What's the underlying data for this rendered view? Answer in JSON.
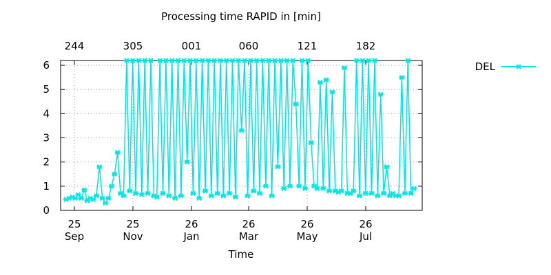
{
  "chart_data": {
    "type": "line",
    "title": "Processing time RAPID in [min]",
    "xlabel": "Time",
    "ylabel": "",
    "ylim": [
      0,
      6.2
    ],
    "y_ticks": [
      0,
      1,
      2,
      3,
      4,
      5,
      6
    ],
    "grid": true,
    "legend_position": "top-right",
    "bottom_ticks": [
      {
        "day": 25,
        "month": "Sep"
      },
      {
        "day": 25,
        "month": "Nov"
      },
      {
        "day": 26,
        "month": "Jan"
      },
      {
        "day": 26,
        "month": "Mar"
      },
      {
        "day": 26,
        "month": "May"
      },
      {
        "day": 26,
        "month": "Jul"
      }
    ],
    "top_ticks": [
      "244",
      "305",
      "001",
      "060",
      "121",
      "182"
    ],
    "series": [
      {
        "name": "DEL",
        "color": "#00e5e5",
        "x": [
          0,
          3,
          6,
          9,
          12,
          15,
          18,
          21,
          24,
          27,
          30,
          33,
          36,
          39,
          42,
          45,
          48,
          51,
          54,
          57,
          60,
          63,
          66,
          69,
          72,
          75,
          78,
          81,
          84,
          87,
          90,
          93,
          96,
          99,
          102,
          105,
          108,
          111,
          114,
          117,
          120,
          123,
          126,
          129,
          132,
          135,
          138,
          141,
          144,
          147,
          150,
          153,
          156,
          159,
          162,
          165,
          168,
          171,
          174,
          177,
          180,
          183,
          186,
          189,
          192,
          195,
          198,
          201,
          204,
          207,
          210,
          213,
          216,
          219,
          222,
          225,
          228,
          231,
          234,
          237,
          240,
          243,
          246,
          249,
          252,
          255,
          258,
          261,
          264,
          267,
          270,
          273,
          276,
          279,
          282,
          285,
          288,
          291,
          294,
          297,
          300,
          303,
          306,
          309,
          312,
          315,
          318,
          321,
          324,
          327,
          330,
          333,
          336,
          339,
          342,
          345
        ],
        "y": [
          0.45,
          0.5,
          0.55,
          0.5,
          0.65,
          0.5,
          0.85,
          0.4,
          0.5,
          0.45,
          0.6,
          1.8,
          0.5,
          0.3,
          0.5,
          1.0,
          1.5,
          2.4,
          0.7,
          0.6,
          6.2,
          0.8,
          6.2,
          0.7,
          6.2,
          0.65,
          6.2,
          0.7,
          6.2,
          0.6,
          0.55,
          6.2,
          0.7,
          6.2,
          0.6,
          6.2,
          0.5,
          6.2,
          0.6,
          6.2,
          2.0,
          6.2,
          0.7,
          6.2,
          0.5,
          6.2,
          0.8,
          6.2,
          0.6,
          6.2,
          0.7,
          6.2,
          0.6,
          6.2,
          0.7,
          6.2,
          0.55,
          6.2,
          3.3,
          6.2,
          0.6,
          6.2,
          0.8,
          6.2,
          0.7,
          6.2,
          1.0,
          6.2,
          0.6,
          6.2,
          1.8,
          6.2,
          0.9,
          6.2,
          1.0,
          6.2,
          4.4,
          1.0,
          6.2,
          0.9,
          6.2,
          2.8,
          1.0,
          0.9,
          5.3,
          0.9,
          5.4,
          0.8,
          4.9,
          0.8,
          0.75,
          0.8,
          5.9,
          0.7,
          0.7,
          0.8,
          6.2,
          0.6,
          6.2,
          0.7,
          6.2,
          0.7,
          6.2,
          0.6,
          4.8,
          0.7,
          1.8,
          0.6,
          0.7,
          0.6,
          0.6,
          5.5,
          0.7,
          6.2,
          0.7,
          0.9
        ]
      }
    ]
  }
}
